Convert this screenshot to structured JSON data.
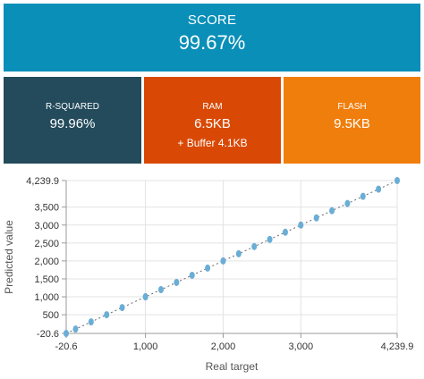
{
  "colors": {
    "score_bg": "#0a8fb8",
    "r2_bg": "#234b5b",
    "ram_bg": "#d94905",
    "flash_bg": "#f07e0c",
    "point": "#6aaed6",
    "diagonal": "#666666",
    "grid": "#e3e3e3"
  },
  "tiles": {
    "score": {
      "label": "SCORE",
      "value": "99.67%"
    },
    "r_squared": {
      "label": "R-SQUARED",
      "value": "99.96%"
    },
    "ram": {
      "label": "RAM",
      "value": "6.5KB",
      "extra": "+ Buffer 4.1KB"
    },
    "flash": {
      "label": "FLASH",
      "value": "9.5KB"
    }
  },
  "chart_data": {
    "type": "scatter",
    "xlabel": "Real target",
    "ylabel": "Predicted value",
    "xlim": [
      -20.6,
      4239.9
    ],
    "ylim": [
      -20.6,
      4239.9
    ],
    "x_ticks": [
      -20.6,
      1000,
      2000,
      3000,
      4239.9
    ],
    "x_tick_labels": [
      "-20.6",
      "1,000",
      "2,000",
      "3,000",
      "4,239.9"
    ],
    "y_ticks": [
      -20.6,
      500,
      1000,
      1500,
      2000,
      2500,
      3000,
      3500,
      4239.9
    ],
    "y_tick_labels": [
      "-20.6",
      "500",
      "1,000",
      "1,500",
      "2,000",
      "2,500",
      "3,000",
      "3,500",
      "4,239.9"
    ],
    "grid": true,
    "diagonal": true,
    "series": [
      {
        "x": [
          -20.6,
          100,
          300,
          500,
          700,
          1000,
          1000,
          1200,
          1400,
          1600,
          1800,
          2000,
          2200,
          2400,
          2600,
          2800,
          3000,
          3200,
          3400,
          3600,
          3800,
          4000,
          4239.9
        ],
        "y": [
          -20.6,
          100,
          300,
          500,
          700,
          1000,
          1000,
          1200,
          1400,
          1600,
          1800,
          2000,
          2200,
          2400,
          2600,
          2800,
          3000,
          3200,
          3400,
          3600,
          3800,
          4000,
          4239.9
        ]
      }
    ]
  }
}
